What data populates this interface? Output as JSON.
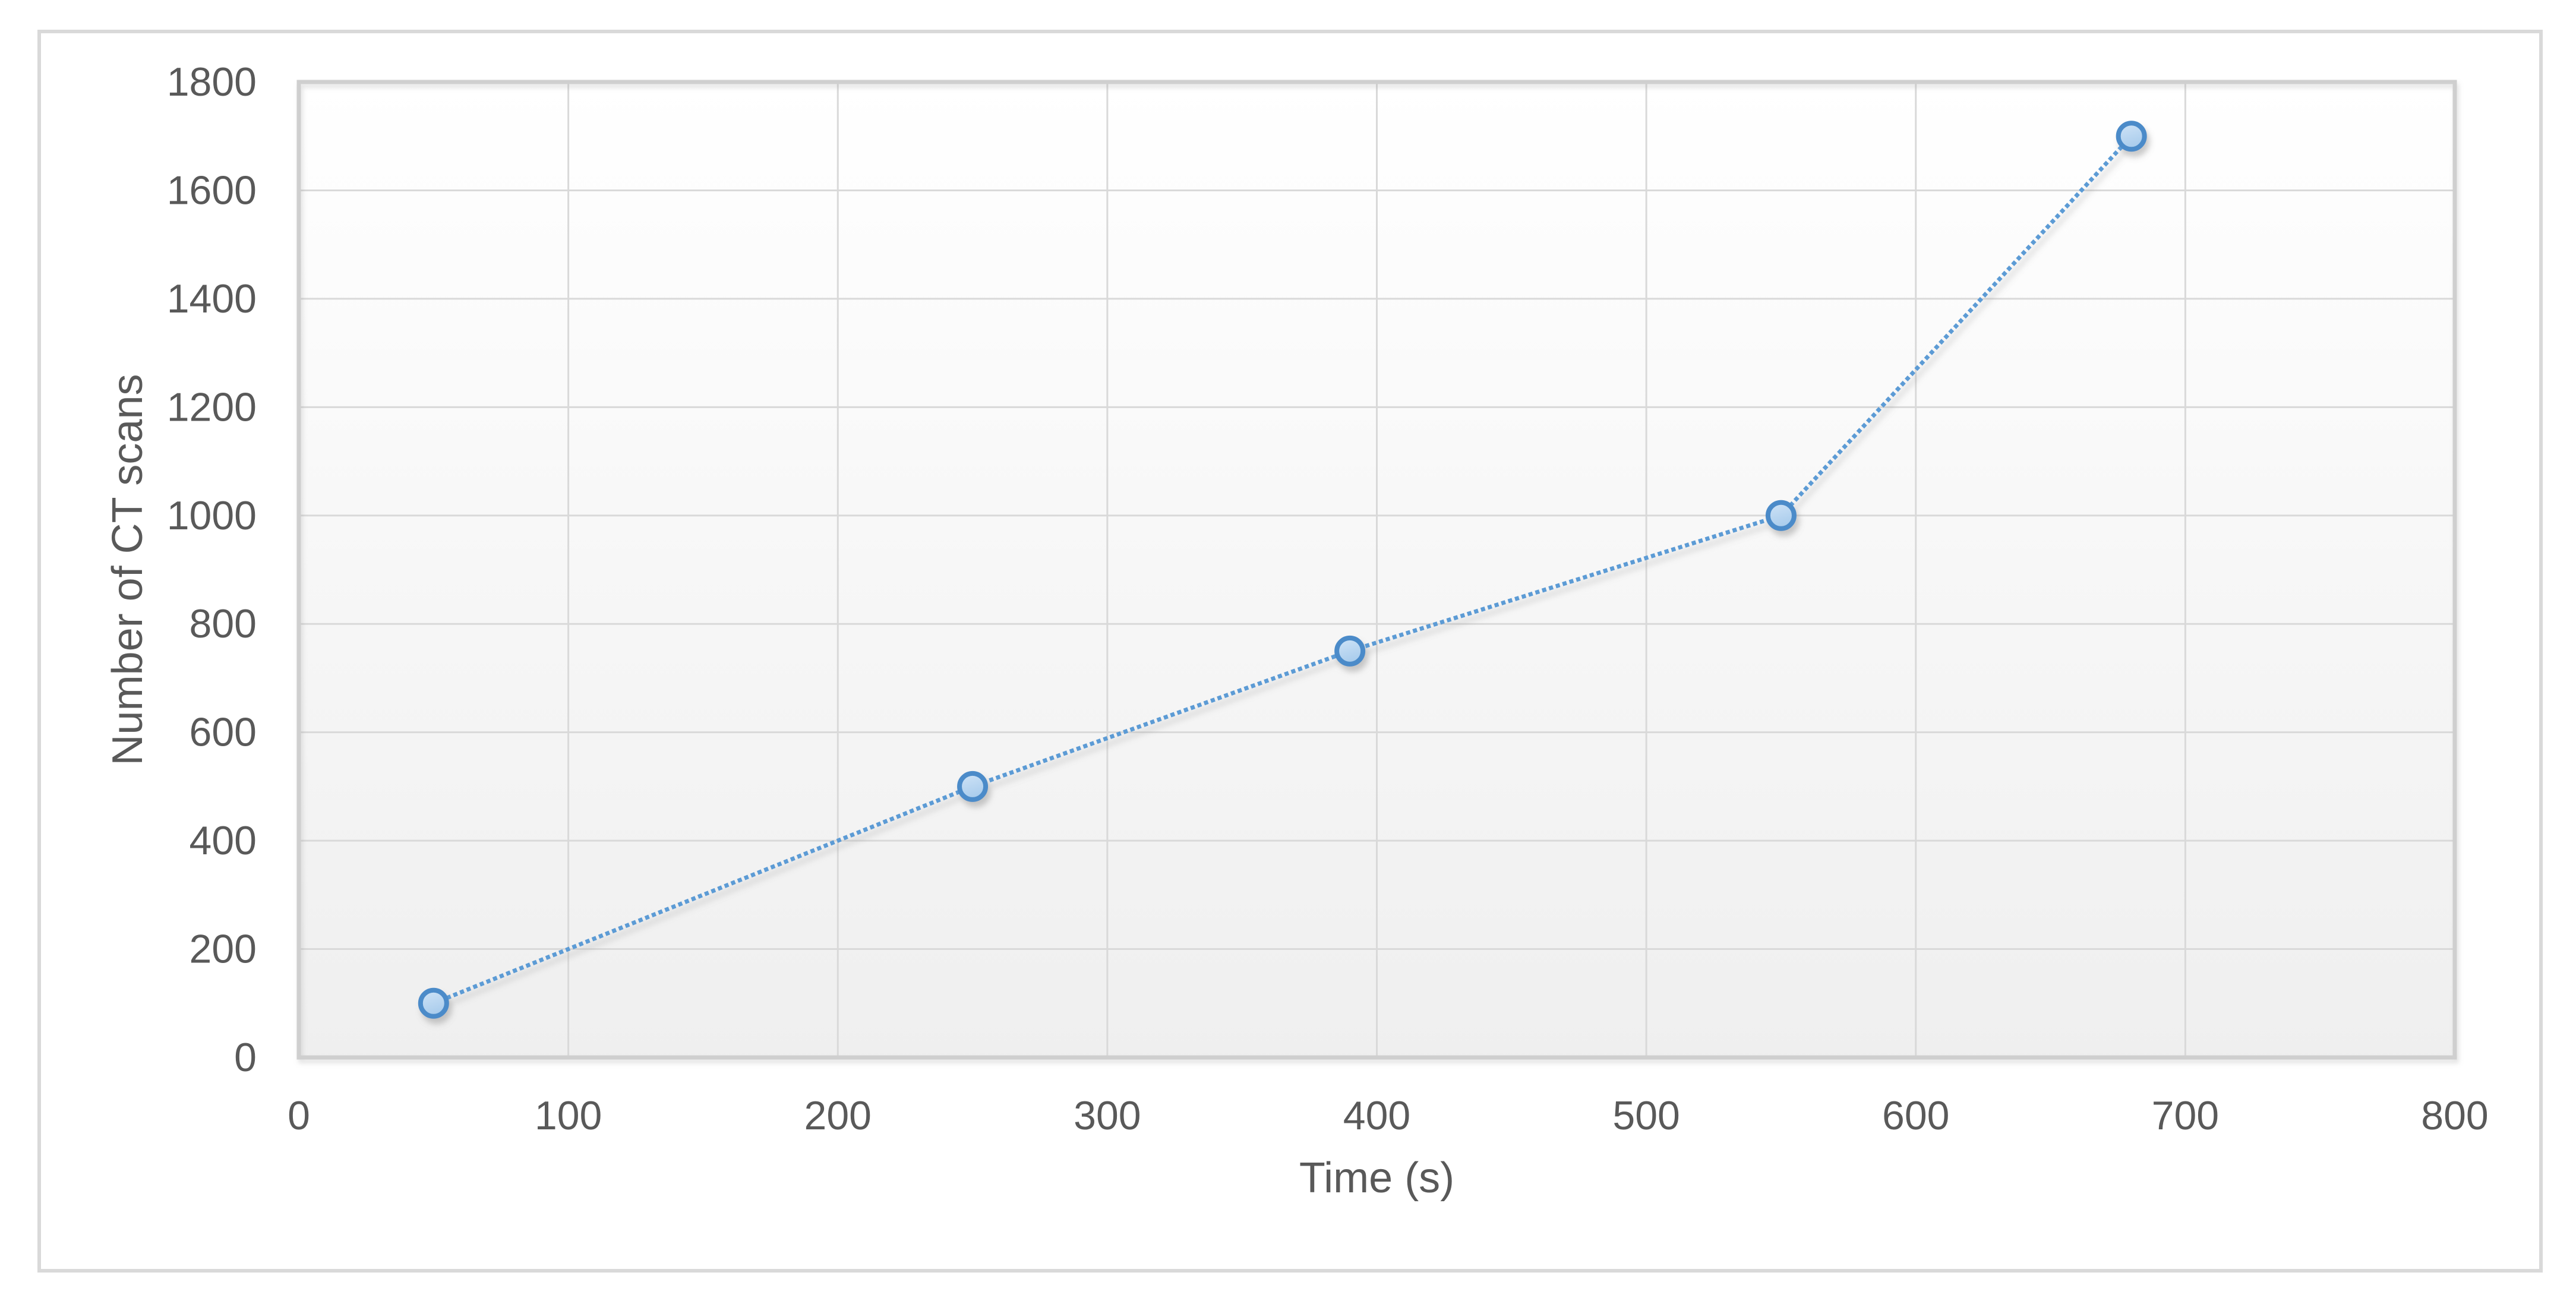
{
  "chart_data": {
    "type": "scatter",
    "title": "",
    "x": [
      50,
      250,
      390,
      550,
      680
    ],
    "y": [
      100,
      500,
      750,
      1000,
      1700
    ],
    "xlabel": "Time (s)",
    "ylabel": "Number of CT scans",
    "xlim": [
      0,
      800
    ],
    "ylim": [
      0,
      1800
    ],
    "x_ticks": [
      0,
      100,
      200,
      300,
      400,
      500,
      600,
      700,
      800
    ],
    "y_ticks": [
      0,
      200,
      400,
      600,
      800,
      1000,
      1200,
      1400,
      1600,
      1800
    ],
    "grid": true,
    "legend": false,
    "line_style": "dotted",
    "marker_shape": "circle"
  },
  "colors": {
    "page_bg": "#FFFFFF",
    "chart_border": "#D9D9D9",
    "plot_border": "#CFCFCF",
    "gridline": "#D9D9D9",
    "text": "#595959",
    "series_line": "#5B9BD5",
    "marker_stroke": "#4C8BC9",
    "marker_fill_light": "#D0E4F7",
    "marker_fill_dark": "#A9CCEC",
    "plot_bg_top": "#FFFFFF",
    "plot_bg_bottom": "#EFEFEF"
  }
}
